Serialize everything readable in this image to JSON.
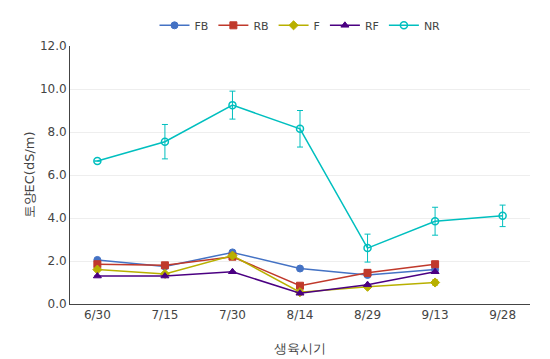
{
  "chart_data": {
    "type": "line",
    "x_label": "생육시기",
    "y_label": "토양EC(dS/m)",
    "categories": [
      "6/30",
      "7/15",
      "7/30",
      "8/14",
      "8/29",
      "9/13",
      "9/28"
    ],
    "series": [
      {
        "name": "FB",
        "color": "#4472C4",
        "marker": "circle",
        "values": [
          2.05,
          1.75,
          2.4,
          1.65,
          1.35,
          1.6,
          null
        ],
        "errors": [
          0.0,
          0.0,
          0.0,
          0.0,
          0.0,
          0.0,
          null
        ]
      },
      {
        "name": "RB",
        "color": "#C0392B",
        "marker": "square",
        "values": [
          1.85,
          1.8,
          2.2,
          0.85,
          1.45,
          1.85,
          null
        ],
        "errors": [
          0.0,
          0.0,
          0.0,
          0.0,
          0.15,
          0.0,
          null
        ]
      },
      {
        "name": "F",
        "color": "#B8B000",
        "marker": "diamond",
        "values": [
          1.6,
          1.4,
          2.25,
          0.55,
          0.8,
          1.0,
          null
        ],
        "errors": [
          0.0,
          0.0,
          0.0,
          0.0,
          0.0,
          0.12,
          null
        ]
      },
      {
        "name": "RF",
        "color": "#4B0082",
        "marker": "triangle-up",
        "values": [
          1.3,
          1.3,
          1.5,
          0.5,
          0.9,
          1.5,
          null
        ],
        "errors": [
          0.0,
          0.0,
          0.0,
          0.0,
          0.0,
          0.0,
          null
        ]
      },
      {
        "name": "NR",
        "color": "#00BFBF",
        "marker": "circle-open",
        "values": [
          6.65,
          7.55,
          9.25,
          8.15,
          2.6,
          3.85,
          4.1
        ],
        "errors": [
          0.0,
          0.8,
          0.65,
          0.85,
          0.65,
          0.65,
          0.5
        ]
      }
    ],
    "ylim": [
      0.0,
      12.0
    ],
    "yticks": [
      {
        "value": 0,
        "label": "0.0"
      },
      {
        "value": 2,
        "label": "2.0"
      },
      {
        "value": 4,
        "label": "4.0"
      },
      {
        "value": 6,
        "label": "6.0"
      },
      {
        "value": 8,
        "label": "8.0"
      },
      {
        "value": 10,
        "label": "10.0"
      },
      {
        "value": 12,
        "label": "12.0"
      }
    ],
    "grid": "y",
    "legend": "top"
  }
}
